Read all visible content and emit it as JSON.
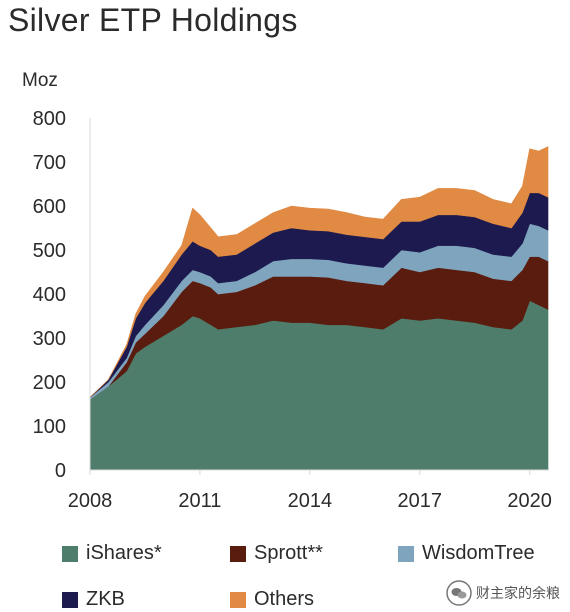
{
  "title": "Silver ETP Holdings",
  "watermark": "财主家的余粮",
  "chart_data": {
    "type": "area",
    "stacked": true,
    "title": "Silver ETP Holdings",
    "ylabel": "Moz",
    "xlabel": "",
    "ylim": [
      0,
      800
    ],
    "yticks": [
      0,
      100,
      200,
      300,
      400,
      500,
      600,
      700,
      800
    ],
    "xlim": [
      2008,
      2020.5
    ],
    "xticks": [
      2008,
      2011,
      2014,
      2017,
      2020
    ],
    "grid": "none",
    "legend_position": "bottom",
    "x": [
      2008.0,
      2008.5,
      2009.0,
      2009.25,
      2009.5,
      2010.0,
      2010.5,
      2010.8,
      2011.0,
      2011.3,
      2011.5,
      2012.0,
      2012.5,
      2013.0,
      2013.5,
      2014.0,
      2014.5,
      2015.0,
      2015.5,
      2016.0,
      2016.5,
      2017.0,
      2017.5,
      2018.0,
      2018.5,
      2019.0,
      2019.5,
      2019.8,
      2020.0,
      2020.25,
      2020.5
    ],
    "series": [
      {
        "name": "iShares*",
        "color": "#4e7d6b",
        "values": [
          160,
          190,
          225,
          265,
          280,
          305,
          330,
          350,
          345,
          330,
          320,
          325,
          330,
          340,
          335,
          335,
          330,
          330,
          325,
          320,
          345,
          340,
          345,
          340,
          335,
          325,
          320,
          340,
          385,
          375,
          365
        ]
      },
      {
        "name": "Sprott**",
        "color": "#5a1c0e",
        "values": [
          0,
          0,
          20,
          25,
          30,
          45,
          75,
          80,
          80,
          85,
          80,
          80,
          90,
          100,
          105,
          105,
          108,
          100,
          100,
          100,
          115,
          110,
          115,
          115,
          115,
          110,
          110,
          115,
          100,
          110,
          110
        ]
      },
      {
        "name": "WisdomTree",
        "color": "#7fa4bd",
        "values": [
          5,
          10,
          10,
          15,
          20,
          25,
          25,
          25,
          25,
          25,
          25,
          25,
          30,
          35,
          40,
          40,
          40,
          40,
          40,
          40,
          40,
          45,
          50,
          55,
          55,
          55,
          55,
          60,
          75,
          70,
          70
        ]
      },
      {
        "name": "ZKB",
        "color": "#1c1a4e",
        "values": [
          0,
          5,
          25,
          40,
          50,
          55,
          60,
          65,
          60,
          60,
          60,
          60,
          65,
          65,
          70,
          65,
          65,
          65,
          65,
          65,
          65,
          70,
          70,
          70,
          70,
          70,
          65,
          70,
          70,
          75,
          75
        ]
      },
      {
        "name": "Others",
        "color": "#e08a43",
        "values": [
          0,
          0,
          5,
          10,
          15,
          20,
          20,
          75,
          70,
          50,
          45,
          45,
          45,
          45,
          50,
          50,
          50,
          50,
          45,
          45,
          50,
          55,
          60,
          60,
          60,
          55,
          55,
          60,
          100,
          95,
          115
        ]
      }
    ]
  }
}
